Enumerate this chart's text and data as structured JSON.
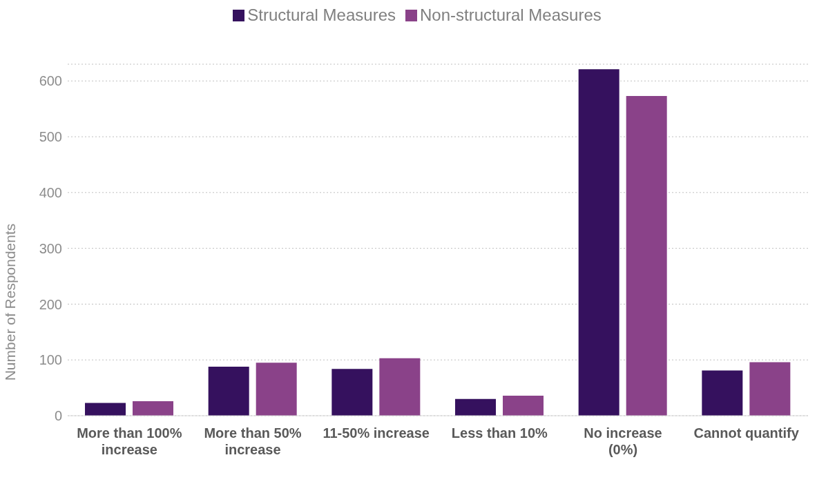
{
  "chart_data": {
    "type": "bar",
    "ylabel": "Number of Respondents",
    "categories": [
      "More than 100% increase",
      "More than 50% increase",
      "11-50% increase",
      "Less than 10%",
      "No increase (0%)",
      "Cannot quantify"
    ],
    "series": [
      {
        "name": "Structural Measures",
        "color": "#35115e",
        "values": [
          23,
          88,
          84,
          30,
          621,
          81
        ]
      },
      {
        "name": "Non-structural Measures",
        "color": "#8a4289",
        "values": [
          26,
          95,
          103,
          36,
          573,
          96
        ]
      }
    ],
    "ylim": [
      0,
      630
    ],
    "yticks": [
      0,
      100,
      200,
      300,
      400,
      500,
      600
    ],
    "grid": "y",
    "legend": "top"
  }
}
